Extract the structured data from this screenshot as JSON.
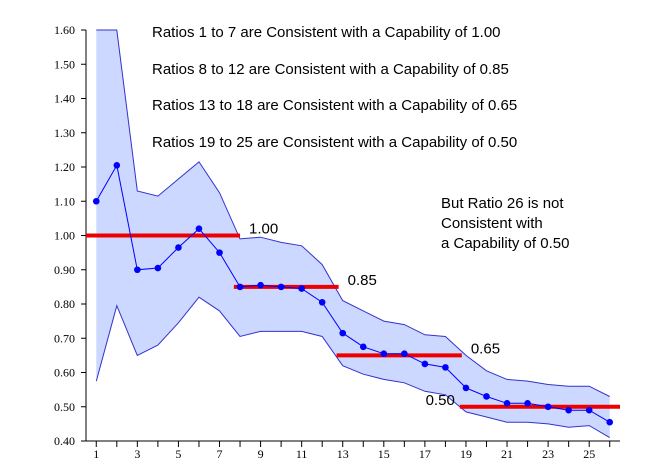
{
  "chart_data": {
    "type": "line",
    "title": "",
    "xlabel": "",
    "ylabel": "",
    "xlim": [
      0.5,
      26.5
    ],
    "ylim": [
      0.4,
      1.6
    ],
    "grid": false,
    "x": [
      1,
      2,
      3,
      4,
      5,
      6,
      7,
      8,
      9,
      10,
      11,
      12,
      13,
      14,
      15,
      16,
      17,
      18,
      19,
      20,
      21,
      22,
      23,
      24,
      25,
      26
    ],
    "series": [
      {
        "role": "ratio",
        "color": "#0000ff",
        "values": [
          1.1,
          1.205,
          0.9,
          0.905,
          0.965,
          1.02,
          0.95,
          0.85,
          0.855,
          0.85,
          0.845,
          0.805,
          0.715,
          0.675,
          0.655,
          0.655,
          0.625,
          0.615,
          0.555,
          0.53,
          0.51,
          0.51,
          0.5,
          0.49,
          0.49,
          0.455
        ]
      },
      {
        "role": "upper-limit",
        "color": "#3333cc",
        "values": [
          1.6,
          1.6,
          1.13,
          1.115,
          1.165,
          1.215,
          1.125,
          0.99,
          0.995,
          0.98,
          0.97,
          0.915,
          0.81,
          0.78,
          0.75,
          0.74,
          0.71,
          0.705,
          0.65,
          0.605,
          0.58,
          0.575,
          0.565,
          0.56,
          0.56,
          0.53
        ]
      },
      {
        "role": "lower-limit",
        "color": "#3333cc",
        "values": [
          0.575,
          0.795,
          0.65,
          0.68,
          0.745,
          0.82,
          0.78,
          0.705,
          0.72,
          0.72,
          0.72,
          0.705,
          0.62,
          0.595,
          0.58,
          0.57,
          0.545,
          0.535,
          0.485,
          0.47,
          0.455,
          0.455,
          0.45,
          0.44,
          0.445,
          0.41
        ]
      }
    ],
    "band_fill_color": "#ccd8ff",
    "capability_levels": [
      {
        "label": "1.00",
        "value": 1.0,
        "x_start": 0.5,
        "x_end": 8.0,
        "label_side": "right"
      },
      {
        "label": "0.85",
        "value": 0.85,
        "x_start": 7.7,
        "x_end": 12.8,
        "label_side": "right"
      },
      {
        "label": "0.65",
        "value": 0.65,
        "x_start": 12.7,
        "x_end": 18.8,
        "label_side": "right"
      },
      {
        "label": "0.50",
        "value": 0.5,
        "x_start": 18.7,
        "x_end": 26.5,
        "label_side": "left"
      }
    ],
    "level_line_color": "#ee0000",
    "yticks": [
      0.4,
      0.5,
      0.6,
      0.7,
      0.8,
      0.9,
      1.0,
      1.1,
      1.2,
      1.3,
      1.4,
      1.5,
      1.6
    ],
    "ytick_labels": [
      "0.40",
      "0.50",
      "0.60",
      "0.70",
      "0.80",
      "0.90",
      "1.00",
      "1.10",
      "1.20",
      "1.30",
      "1.40",
      "1.50",
      "1.60"
    ],
    "xticks": [
      1,
      3,
      5,
      7,
      9,
      11,
      13,
      15,
      17,
      19,
      21,
      23,
      25
    ],
    "xtick_labels": [
      "1",
      "3",
      "5",
      "7",
      "9",
      "11",
      "13",
      "15",
      "17",
      "19",
      "21",
      "23",
      "25"
    ],
    "minor_xticks": [
      2,
      4,
      6,
      8,
      10,
      12,
      14,
      16,
      18,
      20,
      22,
      24,
      26
    ],
    "annotations": [
      "Ratios 1 to 7 are Consistent with a Capability of 1.00",
      "Ratios 8 to 12 are Consistent with a Capability of 0.85",
      "Ratios 13 to 18 are Consistent with a Capability of 0.65",
      "Ratios 19 to 25 are Consistent with a Capability of 0.50"
    ],
    "note_lines": [
      "But Ratio 26 is not",
      "Consistent with",
      "a Capability of 0.50"
    ]
  }
}
